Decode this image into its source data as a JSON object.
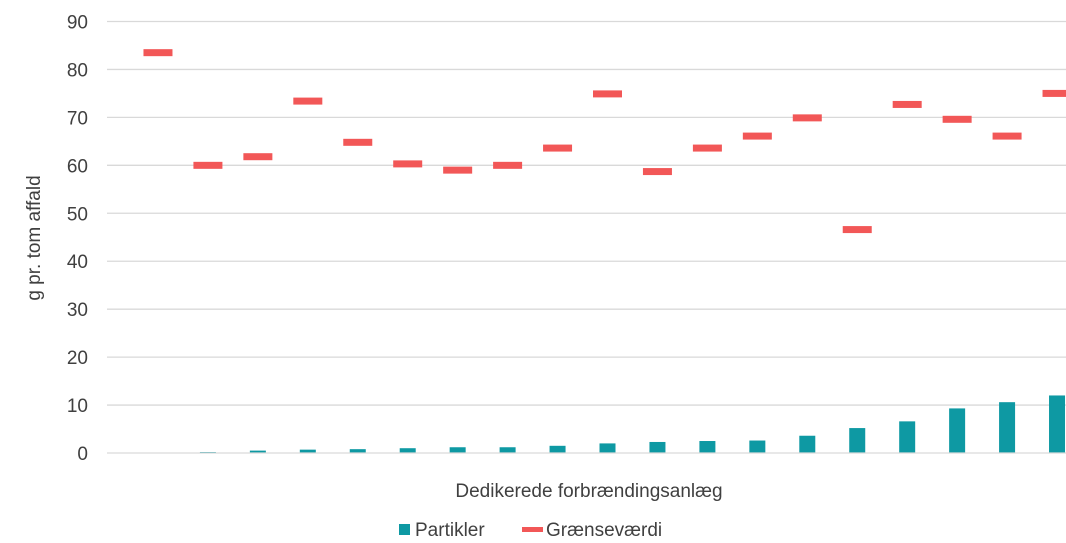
{
  "chart_data": {
    "type": "bar",
    "title": "",
    "xlabel": "Dedikerede forbrændingsanlæg",
    "ylabel": "g pr. tom affald",
    "ylim": [
      0,
      90
    ],
    "yticks": [
      "0",
      "10",
      "20",
      "30",
      "40",
      "50",
      "60",
      "70",
      "80",
      "90"
    ],
    "grid": true,
    "legend_position": "bottom",
    "categories": [
      "",
      "",
      "",
      "",
      "",
      "",
      "",
      "",
      "",
      "",
      "",
      "",
      "",
      "",
      "",
      "",
      "",
      "",
      ""
    ],
    "series": [
      {
        "name": "Partikler",
        "kind": "bar",
        "color": "#0e99a3",
        "values": [
          0.0,
          0.2,
          0.5,
          0.7,
          0.8,
          1.0,
          1.2,
          1.2,
          1.5,
          2.0,
          2.3,
          2.5,
          2.6,
          3.6,
          5.2,
          6.6,
          9.3,
          10.6,
          12.0
        ]
      },
      {
        "name": "Grænseværdi",
        "kind": "marker",
        "color": "#f25757",
        "values": [
          83.5,
          60.0,
          61.8,
          73.4,
          64.8,
          60.3,
          59.0,
          60.0,
          63.6,
          74.9,
          58.7,
          63.6,
          66.1,
          69.9,
          46.6,
          72.7,
          69.6,
          66.1,
          75.0
        ]
      }
    ]
  }
}
